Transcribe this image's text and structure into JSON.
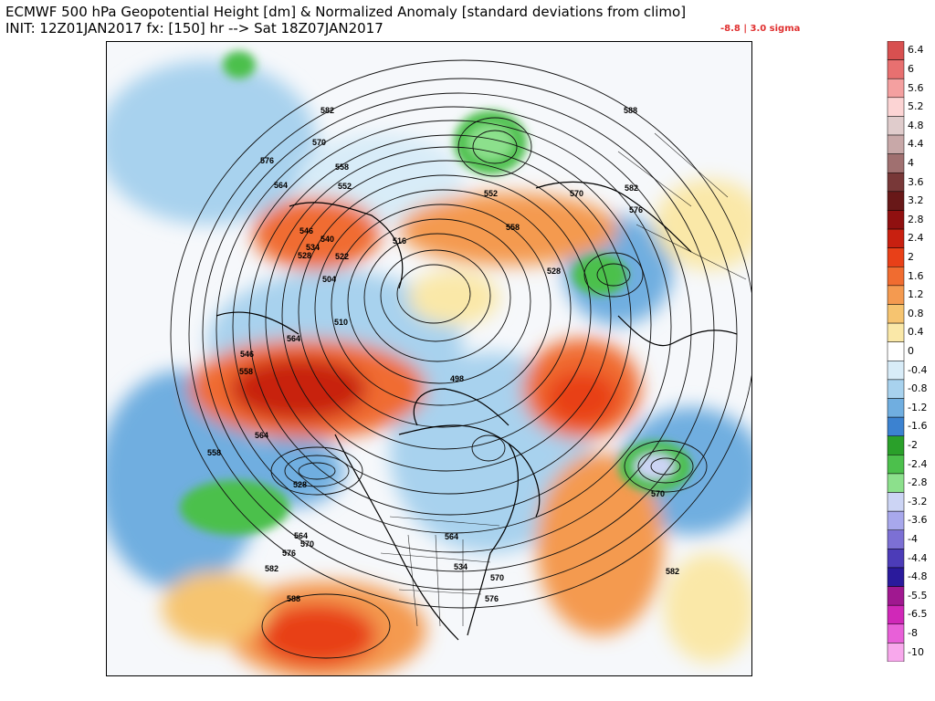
{
  "header": {
    "title": "ECMWF 500 hPa Geopotential Height [dm] & Normalized Anomaly [standard deviations from climo]",
    "init_line": "INIT: 12Z01JAN2017 fx: [150] hr --> Sat 18Z07JAN2017",
    "range_text": "-8.8 | 3.0 sigma"
  },
  "map": {
    "contour_labels": [
      {
        "id": "l582a",
        "text": "582"
      },
      {
        "id": "l570a",
        "text": "570"
      },
      {
        "id": "l576a",
        "text": "576"
      },
      {
        "id": "l564a",
        "text": "564"
      },
      {
        "id": "l558a",
        "text": "558"
      },
      {
        "id": "l552a",
        "text": "552"
      },
      {
        "id": "l546a",
        "text": "546"
      },
      {
        "id": "l540a",
        "text": "540"
      },
      {
        "id": "l534a",
        "text": "534"
      },
      {
        "id": "l528a",
        "text": "528"
      },
      {
        "id": "l522a",
        "text": "522"
      },
      {
        "id": "l516a",
        "text": "516"
      },
      {
        "id": "l510a",
        "text": "510"
      },
      {
        "id": "l504a",
        "text": "504"
      },
      {
        "id": "l498a",
        "text": "498"
      },
      {
        "id": "l552b",
        "text": "552"
      },
      {
        "id": "l558b",
        "text": "558"
      },
      {
        "id": "l588a",
        "text": "588"
      },
      {
        "id": "l582b",
        "text": "582"
      },
      {
        "id": "l570b",
        "text": "570"
      },
      {
        "id": "l576b",
        "text": "576"
      },
      {
        "id": "l564b",
        "text": "564"
      },
      {
        "id": "l546b",
        "text": "546"
      },
      {
        "id": "l558c",
        "text": "558"
      },
      {
        "id": "l564c",
        "text": "564"
      },
      {
        "id": "l528b",
        "text": "528"
      },
      {
        "id": "l564d",
        "text": "564"
      },
      {
        "id": "l570c",
        "text": "570"
      },
      {
        "id": "l576c",
        "text": "576"
      },
      {
        "id": "l582c",
        "text": "582"
      },
      {
        "id": "l588b",
        "text": "588"
      },
      {
        "id": "l570d",
        "text": "570"
      },
      {
        "id": "l576d",
        "text": "576"
      },
      {
        "id": "l582d",
        "text": "582"
      },
      {
        "id": "l570e",
        "text": "570"
      },
      {
        "id": "l558d",
        "text": "558"
      },
      {
        "id": "l564e",
        "text": "564"
      },
      {
        "id": "l534b",
        "text": "534"
      },
      {
        "id": "l528c",
        "text": "528"
      }
    ]
  },
  "colorbar": {
    "labels": [
      "6.4",
      "6",
      "5.6",
      "5.2",
      "4.8",
      "4.4",
      "4",
      "3.6",
      "3.2",
      "2.8",
      "2.4",
      "2",
      "1.6",
      "1.2",
      "0.8",
      "0.4",
      "0",
      "-0.4",
      "-0.8",
      "-1.2",
      "-1.6",
      "-2",
      "-2.4",
      "-2.8",
      "-3.2",
      "-3.6",
      "-4",
      "-4.4",
      "-4.8",
      "-5.5",
      "-6.5",
      "-8",
      "-10"
    ],
    "colors": [
      "#d85050",
      "#e87070",
      "#f4a0a0",
      "#fcd4d4",
      "#e0cccc",
      "#c8a8a8",
      "#a07070",
      "#783838",
      "#681818",
      "#901010",
      "#c82010",
      "#e84018",
      "#f06c30",
      "#f49a50",
      "#f6c470",
      "#fae8a8",
      "#ffffff",
      "#d8ecf8",
      "#a8d2ee",
      "#70aee0",
      "#3c82d0",
      "#2aa02a",
      "#4cc04c",
      "#8ce08c",
      "#ccd4f4",
      "#a8a8ec",
      "#7c70d4",
      "#4c3cb8",
      "#2a1a9c",
      "#a01890",
      "#d028b8",
      "#e860d8",
      "#f8a8ec"
    ]
  }
}
